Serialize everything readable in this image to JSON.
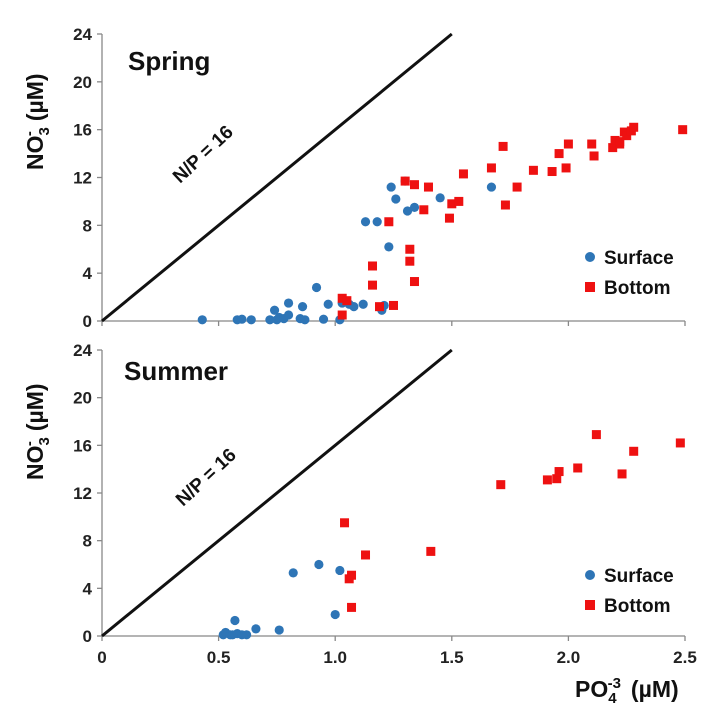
{
  "chart_data": [
    {
      "type": "scatter",
      "title": "Spring",
      "ylabel": {
        "main": "NO",
        "sub": "3",
        "sup": "-",
        "unit": "(µM)"
      },
      "xlim": [
        0,
        2.5
      ],
      "ylim": [
        0,
        24
      ],
      "x_ticks": [
        "0",
        "0.5",
        "1.0",
        "1.5",
        "2.0",
        "2.5"
      ],
      "y_ticks": [
        "0",
        "4",
        "8",
        "12",
        "16",
        "20",
        "24"
      ],
      "reference_line": {
        "label": "N/P = 16",
        "slope": 16
      },
      "legend": {
        "placement": "bottom-right"
      },
      "series": [
        {
          "name": "Surface",
          "marker": "circle",
          "color": "#2e75b6",
          "points": [
            [
              0.43,
              0.1
            ],
            [
              0.58,
              0.1
            ],
            [
              0.6,
              0.15
            ],
            [
              0.64,
              0.1
            ],
            [
              0.72,
              0.1
            ],
            [
              0.74,
              0.9
            ],
            [
              0.75,
              0.1
            ],
            [
              0.76,
              0.3
            ],
            [
              0.78,
              0.2
            ],
            [
              0.8,
              0.5
            ],
            [
              0.8,
              1.5
            ],
            [
              0.85,
              0.2
            ],
            [
              0.86,
              1.2
            ],
            [
              0.87,
              0.1
            ],
            [
              0.92,
              2.8
            ],
            [
              0.95,
              0.15
            ],
            [
              0.97,
              1.4
            ],
            [
              1.02,
              0.1
            ],
            [
              1.03,
              1.5
            ],
            [
              1.06,
              1.4
            ],
            [
              1.08,
              1.2
            ],
            [
              1.12,
              1.4
            ],
            [
              1.13,
              8.3
            ],
            [
              1.18,
              8.3
            ],
            [
              1.2,
              0.9
            ],
            [
              1.21,
              1.3
            ],
            [
              1.23,
              6.2
            ],
            [
              1.24,
              11.2
            ],
            [
              1.26,
              10.2
            ],
            [
              1.3,
              11.7
            ],
            [
              1.31,
              9.2
            ],
            [
              1.34,
              9.5
            ],
            [
              1.45,
              10.3
            ],
            [
              1.67,
              11.2
            ]
          ]
        },
        {
          "name": "Bottom",
          "marker": "square",
          "color": "#ee1111",
          "points": [
            [
              1.03,
              1.9
            ],
            [
              1.03,
              0.5
            ],
            [
              1.05,
              1.7
            ],
            [
              1.16,
              3.0
            ],
            [
              1.16,
              4.6
            ],
            [
              1.19,
              1.2
            ],
            [
              1.23,
              8.3
            ],
            [
              1.25,
              1.3
            ],
            [
              1.3,
              11.7
            ],
            [
              1.32,
              6.0
            ],
            [
              1.32,
              5.0
            ],
            [
              1.34,
              3.3
            ],
            [
              1.34,
              11.4
            ],
            [
              1.38,
              9.3
            ],
            [
              1.4,
              11.2
            ],
            [
              1.49,
              8.6
            ],
            [
              1.5,
              9.8
            ],
            [
              1.53,
              10.0
            ],
            [
              1.55,
              12.3
            ],
            [
              1.67,
              12.8
            ],
            [
              1.73,
              9.7
            ],
            [
              1.72,
              14.6
            ],
            [
              1.78,
              11.2
            ],
            [
              1.85,
              12.6
            ],
            [
              1.93,
              12.5
            ],
            [
              1.96,
              14.0
            ],
            [
              1.99,
              12.8
            ],
            [
              2.0,
              14.8
            ],
            [
              2.1,
              14.8
            ],
            [
              2.11,
              13.8
            ],
            [
              2.19,
              14.5
            ],
            [
              2.2,
              15.1
            ],
            [
              2.22,
              15.0
            ],
            [
              2.22,
              14.8
            ],
            [
              2.24,
              15.8
            ],
            [
              2.25,
              15.5
            ],
            [
              2.27,
              15.9
            ],
            [
              2.28,
              16.2
            ],
            [
              2.49,
              16.0
            ]
          ]
        }
      ]
    },
    {
      "type": "scatter",
      "title": "Summer",
      "ylabel": {
        "main": "NO",
        "sub": "3",
        "sup": "-",
        "unit": "(µM)"
      },
      "xlabel": {
        "main": "PO",
        "sub": "4",
        "sup": "-3",
        "unit": "(µM)"
      },
      "xlim": [
        0,
        2.5
      ],
      "ylim": [
        0,
        24
      ],
      "x_ticks": [
        "0",
        "0.5",
        "1.0",
        "1.5",
        "2.0",
        "2.5"
      ],
      "y_ticks": [
        "0",
        "4",
        "8",
        "12",
        "16",
        "20",
        "24"
      ],
      "reference_line": {
        "label": "N/P = 16",
        "slope": 16
      },
      "legend": {
        "placement": "bottom-right"
      },
      "series": [
        {
          "name": "Surface",
          "marker": "circle",
          "color": "#2e75b6",
          "points": [
            [
              0.52,
              0.1
            ],
            [
              0.53,
              0.3
            ],
            [
              0.55,
              0.1
            ],
            [
              0.56,
              0.1
            ],
            [
              0.57,
              1.3
            ],
            [
              0.58,
              0.2
            ],
            [
              0.6,
              0.1
            ],
            [
              0.62,
              0.1
            ],
            [
              0.66,
              0.6
            ],
            [
              0.76,
              0.5
            ],
            [
              0.82,
              5.3
            ],
            [
              0.93,
              6.0
            ],
            [
              1.0,
              1.8
            ],
            [
              1.02,
              5.5
            ]
          ]
        },
        {
          "name": "Bottom",
          "marker": "square",
          "color": "#ee1111",
          "points": [
            [
              1.04,
              9.5
            ],
            [
              1.06,
              4.8
            ],
            [
              1.07,
              5.1
            ],
            [
              1.07,
              2.4
            ],
            [
              1.13,
              6.8
            ],
            [
              1.41,
              7.1
            ],
            [
              1.71,
              12.7
            ],
            [
              1.91,
              13.1
            ],
            [
              1.95,
              13.2
            ],
            [
              1.96,
              13.8
            ],
            [
              2.04,
              14.1
            ],
            [
              2.12,
              16.9
            ],
            [
              2.23,
              13.6
            ],
            [
              2.28,
              15.5
            ],
            [
              2.48,
              16.2
            ]
          ]
        }
      ]
    }
  ]
}
